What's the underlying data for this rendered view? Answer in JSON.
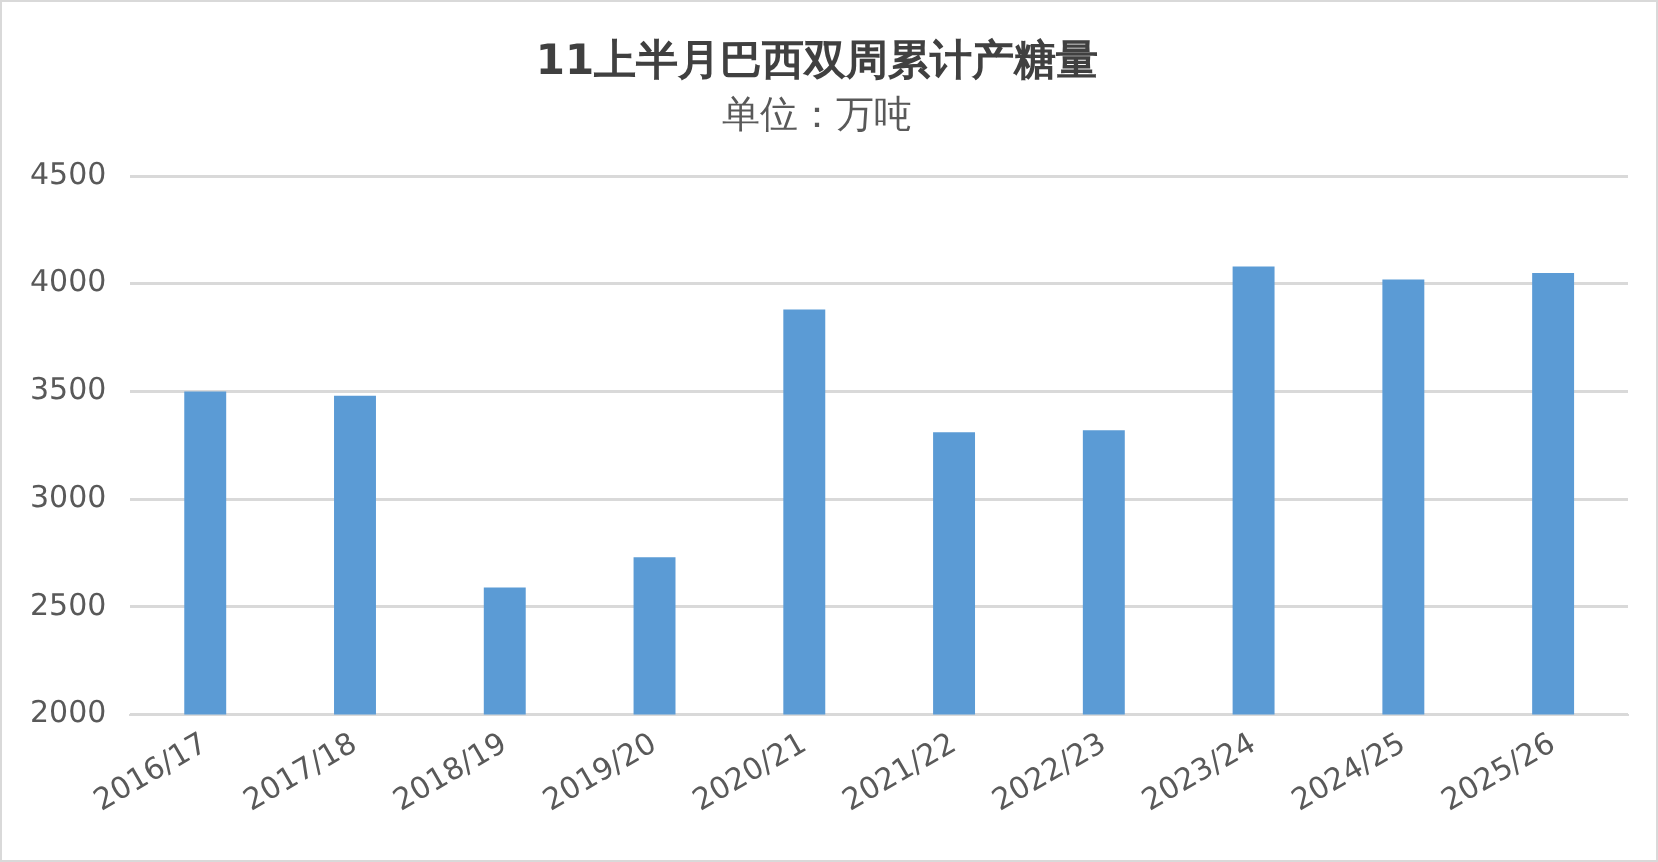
{
  "chart_data": {
    "type": "bar",
    "title": "11上半月巴西双周累计产糖量",
    "subtitle": "单位：万吨",
    "categories": [
      "2016/17",
      "2017/18",
      "2018/19",
      "2019/20",
      "2020/21",
      "2021/22",
      "2022/23",
      "2023/24",
      "2024/25",
      "2025/26"
    ],
    "values": [
      3500,
      3480,
      2590,
      2730,
      3880,
      3310,
      3320,
      4080,
      4020,
      4050
    ],
    "color": "#5b9bd5",
    "ylim": [
      2000,
      4500
    ],
    "yticks": [
      2000,
      2500,
      3000,
      3500,
      4000,
      4500
    ],
    "grid": "y"
  }
}
